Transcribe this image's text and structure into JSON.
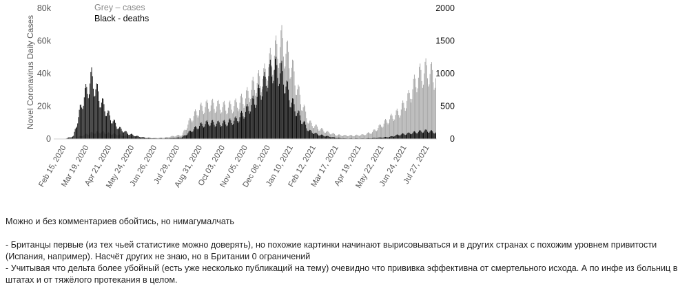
{
  "chart_data": {
    "type": "bar",
    "legend": {
      "line1": "Grey – cases",
      "line2": "Black - deaths",
      "position": "top-left"
    },
    "ylabel": "Novel Coronavirus Daily Cases",
    "y_left": {
      "ticks": [
        "0",
        "20k",
        "40k",
        "60k",
        "80k"
      ],
      "ylim": [
        0,
        80000
      ]
    },
    "y_right": {
      "ticks": [
        "0",
        "500",
        "1000",
        "1500",
        "2000"
      ],
      "ylim": [
        0,
        2000
      ]
    },
    "x_ticks": [
      "Feb 15, 2020",
      "Mar 19, 2020",
      "Apr 21, 2020",
      "May 24, 2020",
      "Jun 26, 2020",
      "Jul 29, 2020",
      "Aug 31, 2020",
      "Oct 03, 2020",
      "Nov 05, 2020",
      "Dec 08, 2020",
      "Jan 10, 2021",
      "Feb 12, 2021",
      "Mar 17, 2021",
      "Apr 19, 2021",
      "May 22, 2021",
      "Jun 24, 2021",
      "Jul 27, 2021"
    ],
    "grid": false,
    "colors": {
      "cases": "#a3a3a3",
      "deaths": "#000000",
      "axis_text": "#555555"
    },
    "series": [
      {
        "name": "cases",
        "axis": "left",
        "date_start": "2020-02-15",
        "step_days": 11,
        "values": [
          0,
          0,
          100,
          2500,
          4500,
          5000,
          4000,
          3000,
          2000,
          1000,
          800,
          700,
          1000,
          2000,
          3000,
          15000,
          22000,
          25000,
          24000,
          23000,
          25000,
          30000,
          40000,
          45000,
          60000,
          70000,
          55000,
          30000,
          12000,
          8000,
          5000,
          3000,
          2500,
          2500,
          3000,
          5000,
          10000,
          15000,
          20000,
          30000,
          45000,
          50000,
          45000
        ]
      },
      {
        "name": "deaths",
        "axis": "right",
        "date_start": "2020-02-15",
        "step_days": 11,
        "values": [
          0,
          0,
          50,
          700,
          1100,
          700,
          400,
          200,
          100,
          50,
          20,
          10,
          10,
          15,
          30,
          150,
          250,
          300,
          280,
          300,
          350,
          500,
          700,
          1000,
          1300,
          1200,
          700,
          400,
          150,
          80,
          50,
          20,
          10,
          10,
          10,
          15,
          25,
          40,
          80,
          100,
          130,
          150,
          120
        ]
      }
    ]
  },
  "post": {
    "p1": "Можно и без комментариев обойтись, но нимагумалчать",
    "p2": "- Британцы первые (из тех чьей статистике можно доверять), но похожие картинки начинают вырисовываться и в других странах с похожим уровнем привитости (Испания, например). Насчёт других не знаю, но в Британии 0 ограничений",
    "p3": "- Учитывая что дельта более убойный (есть уже несколько публикаций на тему) очевидно что прививка эффективна от смертельного исхода. А по инфе из больниц в штатах и от тяжёлого протекания в целом."
  }
}
